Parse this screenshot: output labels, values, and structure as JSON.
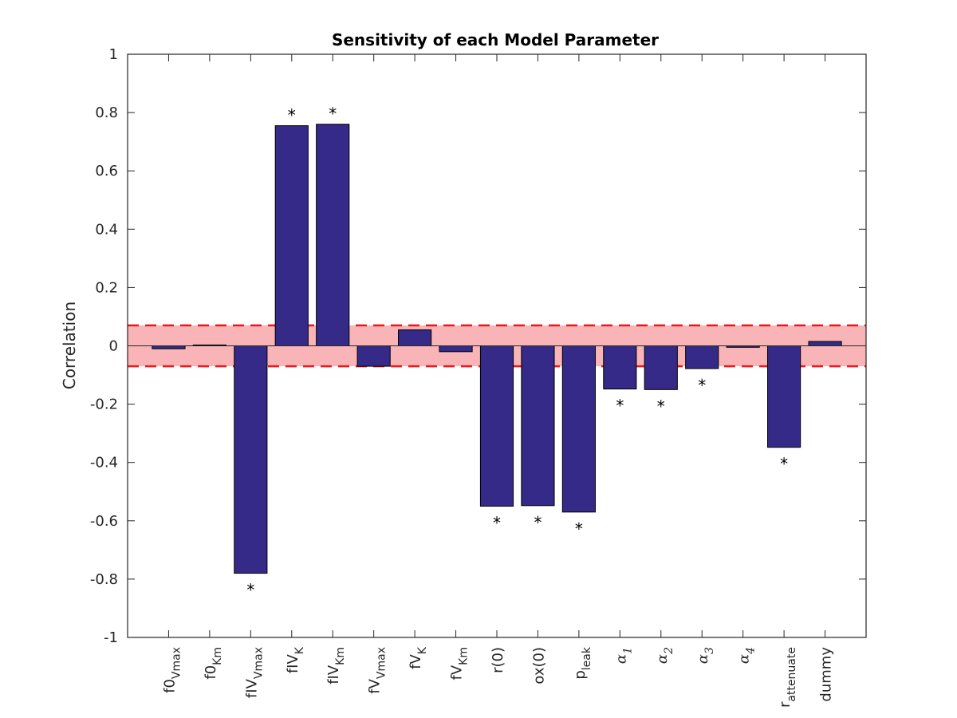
{
  "chart_data": {
    "type": "bar",
    "title": "Sensitivity of each Model Parameter",
    "xlabel": "",
    "ylabel": "Correlation",
    "ylim": [
      -1,
      1
    ],
    "yticks": [
      -1,
      -0.8,
      -0.6,
      -0.4,
      -0.2,
      0,
      0.2,
      0.4,
      0.6,
      0.8,
      1
    ],
    "ytick_labels": [
      "-1",
      "-0.8",
      "-0.6",
      "-0.4",
      "-0.2",
      "0",
      "0.2",
      "0.4",
      "0.6",
      "0.8",
      "1"
    ],
    "categories": [
      {
        "base": "f0",
        "sub": "Vmax",
        "greek": false
      },
      {
        "base": "f0",
        "sub": "Km",
        "greek": false
      },
      {
        "base": "fIV",
        "sub": "Vmax",
        "greek": false
      },
      {
        "base": "fIV",
        "sub": "K",
        "greek": false
      },
      {
        "base": "fIV",
        "sub": "Km",
        "greek": false
      },
      {
        "base": "fV",
        "sub": "Vmax",
        "greek": false
      },
      {
        "base": "fV",
        "sub": "K",
        "greek": false
      },
      {
        "base": "fV",
        "sub": "Km",
        "greek": false
      },
      {
        "base": "r(0)",
        "sub": "",
        "greek": false
      },
      {
        "base": "ox(0)",
        "sub": "",
        "greek": false
      },
      {
        "base": "p",
        "sub": "leak",
        "greek": false
      },
      {
        "base": "α",
        "sub": "1",
        "greek": true
      },
      {
        "base": "α",
        "sub": "2",
        "greek": true
      },
      {
        "base": "α",
        "sub": "3",
        "greek": true
      },
      {
        "base": "α",
        "sub": "4",
        "greek": true
      },
      {
        "base": "r",
        "sub": "attenuate",
        "greek": false
      },
      {
        "base": "dummy",
        "sub": "",
        "greek": false
      }
    ],
    "values": [
      -0.01,
      0.003,
      -0.78,
      0.755,
      0.76,
      -0.07,
      0.055,
      -0.02,
      -0.55,
      -0.548,
      -0.57,
      -0.148,
      -0.15,
      -0.078,
      -0.005,
      -0.348,
      0.015
    ],
    "significant": [
      false,
      false,
      true,
      true,
      true,
      false,
      false,
      false,
      true,
      true,
      true,
      true,
      true,
      true,
      false,
      true,
      false
    ],
    "significance_marker": "*",
    "threshold_band": [
      -0.07,
      0.07
    ],
    "grid": false,
    "colors": {
      "bar_fill": "#352a87",
      "bar_edge": "#000000",
      "band_fill": "#f8b4b6",
      "band_line": "#e8191e",
      "zero_line": "#262626"
    }
  }
}
